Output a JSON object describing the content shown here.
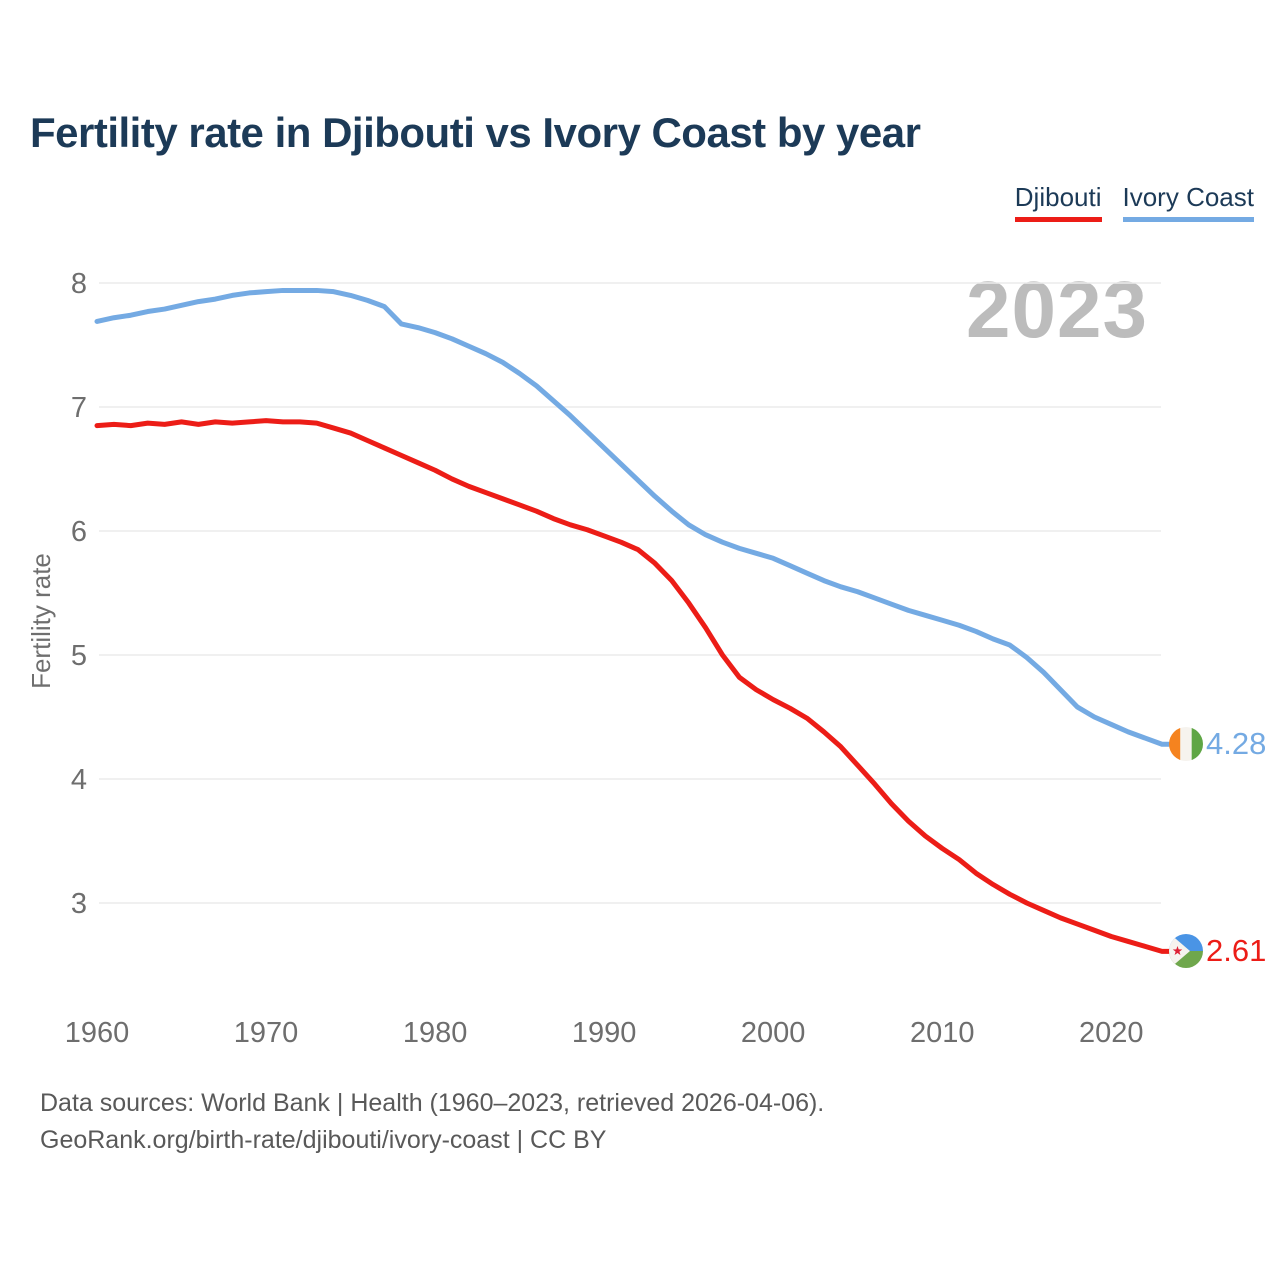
{
  "title": "Fertility rate in Djibouti vs Ivory Coast by year",
  "watermark": "2023",
  "legend": [
    {
      "label": "Djibouti",
      "color": "#ec1d17"
    },
    {
      "label": "Ivory Coast",
      "color": "#74aae3"
    }
  ],
  "end_labels": [
    {
      "series": "Ivory Coast",
      "value": "4.28",
      "color": "#74aae3",
      "flag": "ivory-coast-flag-icon"
    },
    {
      "series": "Djibouti",
      "value": "2.61",
      "color": "#ec1d17",
      "flag": "djibouti-flag-icon"
    }
  ],
  "footer": {
    "line1": "Data sources: World Bank | Health (1960–2023, retrieved 2026-04-06).",
    "line2": "GeoRank.org/birth-rate/djibouti/ivory-coast | CC BY"
  },
  "chart_data": {
    "type": "line",
    "title": "Fertility rate in Djibouti vs Ivory Coast by year",
    "xlabel": "",
    "ylabel": "Fertility rate",
    "xlim": [
      1960,
      2023
    ],
    "ylim": [
      2.4,
      8.2
    ],
    "yticks": [
      3,
      4,
      5,
      6,
      7,
      8
    ],
    "xticks": [
      1960,
      1970,
      1980,
      1990,
      2000,
      2010,
      2020
    ],
    "grid": "horizontal",
    "legend_position": "top-right",
    "x": [
      1960,
      1961,
      1962,
      1963,
      1964,
      1965,
      1966,
      1967,
      1968,
      1969,
      1970,
      1971,
      1972,
      1973,
      1974,
      1975,
      1976,
      1977,
      1978,
      1979,
      1980,
      1981,
      1982,
      1983,
      1984,
      1985,
      1986,
      1987,
      1988,
      1989,
      1990,
      1991,
      1992,
      1993,
      1994,
      1995,
      1996,
      1997,
      1998,
      1999,
      2000,
      2001,
      2002,
      2003,
      2004,
      2005,
      2006,
      2007,
      2008,
      2009,
      2010,
      2011,
      2012,
      2013,
      2014,
      2015,
      2016,
      2017,
      2018,
      2019,
      2020,
      2021,
      2022,
      2023
    ],
    "series": [
      {
        "name": "Djibouti",
        "color": "#ec1d17",
        "end_value": 2.61,
        "values": [
          6.85,
          6.86,
          6.85,
          6.87,
          6.86,
          6.88,
          6.86,
          6.88,
          6.87,
          6.88,
          6.89,
          6.88,
          6.88,
          6.87,
          6.83,
          6.79,
          6.73,
          6.67,
          6.61,
          6.55,
          6.49,
          6.42,
          6.36,
          6.31,
          6.26,
          6.21,
          6.16,
          6.1,
          6.05,
          6.01,
          5.96,
          5.91,
          5.85,
          5.74,
          5.6,
          5.42,
          5.22,
          5.0,
          4.82,
          4.72,
          4.64,
          4.57,
          4.49,
          4.38,
          4.26,
          4.11,
          3.96,
          3.8,
          3.66,
          3.54,
          3.44,
          3.35,
          3.24,
          3.15,
          3.07,
          3.0,
          2.94,
          2.88,
          2.83,
          2.78,
          2.73,
          2.69,
          2.65,
          2.61
        ]
      },
      {
        "name": "Ivory Coast",
        "color": "#74aae3",
        "end_value": 4.28,
        "values": [
          7.69,
          7.72,
          7.74,
          7.77,
          7.79,
          7.82,
          7.85,
          7.87,
          7.9,
          7.92,
          7.93,
          7.94,
          7.94,
          7.94,
          7.93,
          7.9,
          7.86,
          7.81,
          7.67,
          7.64,
          7.6,
          7.55,
          7.49,
          7.43,
          7.36,
          7.27,
          7.17,
          7.05,
          6.93,
          6.8,
          6.67,
          6.54,
          6.41,
          6.28,
          6.16,
          6.05,
          5.97,
          5.91,
          5.86,
          5.82,
          5.78,
          5.72,
          5.66,
          5.6,
          5.55,
          5.51,
          5.46,
          5.41,
          5.36,
          5.32,
          5.28,
          5.24,
          5.19,
          5.13,
          5.08,
          4.98,
          4.86,
          4.72,
          4.58,
          4.5,
          4.44,
          4.38,
          4.33,
          4.28
        ]
      }
    ]
  }
}
